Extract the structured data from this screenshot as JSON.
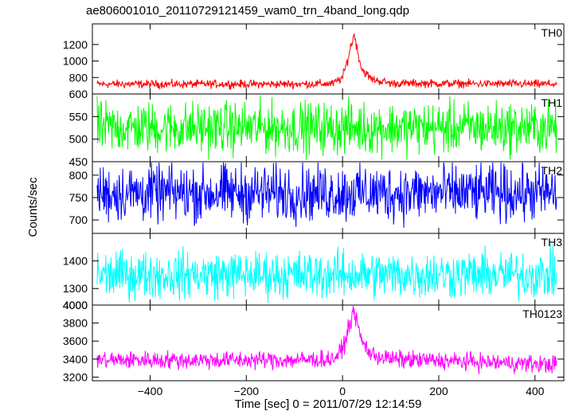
{
  "title": "ae806001010_20110729121459_wam0_trn_4band_long.qdp",
  "ylabel": "Counts/sec",
  "xlabel": "Time [sec] 0 = 2011/07/29 12:14:59",
  "x_ticks": [
    -400,
    -200,
    0,
    200,
    400
  ],
  "chart_data": [
    {
      "type": "line",
      "label": "TH0",
      "color": "#ff0000",
      "ylim": [
        600,
        1450
      ],
      "yticks": [
        800,
        1000,
        1200
      ],
      "ytick_labels": [
        "800",
        "1000",
        "1200"
      ],
      "baseline": 720,
      "noise": 35,
      "x": [
        -510,
        -100,
        -20,
        0,
        10,
        18,
        25,
        30,
        40,
        60,
        100,
        445
      ],
      "y": [
        720,
        720,
        725,
        800,
        1000,
        1200,
        1330,
        1150,
        900,
        780,
        730,
        720
      ]
    },
    {
      "type": "line",
      "label": "TH1",
      "color": "#00ff00",
      "ylim": [
        450,
        600
      ],
      "yticks": [
        500,
        550
      ],
      "ytick_labels": [
        "500",
        "550"
      ],
      "baseline": 525,
      "noise": 40,
      "x": [
        -510,
        445
      ],
      "y": [
        525,
        525
      ]
    },
    {
      "type": "line",
      "label": "TH2",
      "color": "#0000ff",
      "ylim": [
        670,
        830
      ],
      "yticks": [
        700,
        750,
        800
      ],
      "ytick_labels": [
        "700",
        "750",
        "800"
      ],
      "baseline": 760,
      "noise": 45,
      "x": [
        -510,
        445
      ],
      "y": [
        760,
        760
      ]
    },
    {
      "type": "line",
      "label": "TH3",
      "color": "#00ffff",
      "ylim": [
        1240,
        1500
      ],
      "yticks": [
        1300,
        1400
      ],
      "ytick_labels": [
        "1300",
        "1400"
      ],
      "baseline": 1350,
      "noise": 60,
      "x": [
        -510,
        445
      ],
      "y": [
        1350,
        1350
      ]
    },
    {
      "type": "line",
      "label": "TH0123",
      "color": "#ff00ff",
      "ylim": [
        3160,
        4000
      ],
      "yticks": [
        3200,
        3400,
        3600,
        3800,
        4000
      ],
      "ytick_labels": [
        "3200",
        "3400",
        "3600",
        "3800",
        "4000"
      ],
      "baseline": 3390,
      "noise": 70,
      "x": [
        -510,
        -100,
        -20,
        0,
        10,
        18,
        25,
        30,
        40,
        60,
        100,
        445
      ],
      "y": [
        3390,
        3390,
        3400,
        3500,
        3700,
        3850,
        3950,
        3800,
        3600,
        3450,
        3400,
        3340
      ]
    }
  ]
}
